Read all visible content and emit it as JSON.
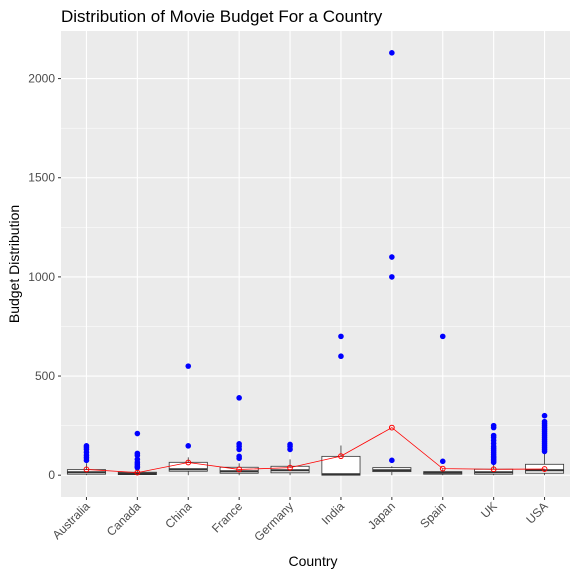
{
  "chart_data": {
    "type": "boxplot",
    "title": "Distribution of Movie Budget For a Country",
    "xlabel": "Country",
    "ylabel": "Budget Distribution",
    "ylim": [
      -110,
      2240
    ],
    "yticks": [
      0,
      500,
      1000,
      1500,
      2000
    ],
    "grid": true,
    "legend": "none",
    "colors": {
      "panel": "#ebebeb",
      "grid_major": "#ffffff",
      "box_fill": "#ffffff",
      "box_stroke": "#333333",
      "outlier": "#0000ff",
      "mean_line": "#ff0000"
    },
    "categories": [
      "Australia",
      "Canada",
      "China",
      "France",
      "Germany",
      "India",
      "Japan",
      "Spain",
      "UK",
      "USA"
    ],
    "boxes": [
      {
        "category": "Australia",
        "whisker_low": 0,
        "q1": 5,
        "median": 15,
        "q3": 28,
        "whisker_high": 60,
        "mean": 29
      },
      {
        "category": "Canada",
        "whisker_low": 0,
        "q1": 3,
        "median": 8,
        "q3": 15,
        "whisker_high": 30,
        "mean": 13
      },
      {
        "category": "China",
        "whisker_low": 0,
        "q1": 20,
        "median": 30,
        "q3": 65,
        "whisker_high": 90,
        "mean": 64
      },
      {
        "category": "France",
        "whisker_low": 0,
        "q1": 10,
        "median": 20,
        "q3": 40,
        "whisker_high": 60,
        "mean": 29
      },
      {
        "category": "Germany",
        "whisker_low": 0,
        "q1": 12,
        "median": 25,
        "q3": 45,
        "whisker_high": 80,
        "mean": 38
      },
      {
        "category": "India",
        "whisker_low": 0,
        "q1": 0,
        "median": 5,
        "q3": 95,
        "whisker_high": 150,
        "mean": 96
      },
      {
        "category": "Japan",
        "whisker_low": 0,
        "q1": 18,
        "median": 25,
        "q3": 38,
        "whisker_high": 45,
        "mean": 240
      },
      {
        "category": "Spain",
        "whisker_low": 0,
        "q1": 5,
        "median": 12,
        "q3": 18,
        "whisker_high": 30,
        "mean": 33
      },
      {
        "category": "UK",
        "whisker_low": 0,
        "q1": 5,
        "median": 15,
        "q3": 30,
        "whisker_high": 60,
        "mean": 30
      },
      {
        "category": "USA",
        "whisker_low": 0,
        "q1": 10,
        "median": 25,
        "q3": 55,
        "whisker_high": 110,
        "mean": 31
      }
    ],
    "outliers": [
      {
        "category": "Australia",
        "values": [
          75,
          88,
          100,
          115,
          130,
          140,
          148
        ]
      },
      {
        "category": "Canada",
        "values": [
          38,
          45,
          55,
          65,
          80,
          100,
          110,
          210
        ]
      },
      {
        "category": "China",
        "values": [
          148,
          550
        ]
      },
      {
        "category": "France",
        "values": [
          85,
          95,
          130,
          145,
          158,
          390
        ]
      },
      {
        "category": "Germany",
        "values": [
          130,
          145,
          155
        ]
      },
      {
        "category": "India",
        "values": [
          600,
          700
        ]
      },
      {
        "category": "Japan",
        "values": [
          75,
          1000,
          1100,
          2130
        ]
      },
      {
        "category": "Spain",
        "values": [
          70,
          700
        ]
      },
      {
        "category": "UK",
        "values": [
          65,
          72,
          80,
          88,
          95,
          105,
          115,
          125,
          135,
          145,
          160,
          175,
          190,
          200,
          240,
          250
        ]
      },
      {
        "category": "USA",
        "values": [
          120,
          130,
          140,
          150,
          160,
          170,
          180,
          190,
          200,
          210,
          220,
          230,
          240,
          250,
          260,
          270,
          300
        ]
      }
    ]
  }
}
